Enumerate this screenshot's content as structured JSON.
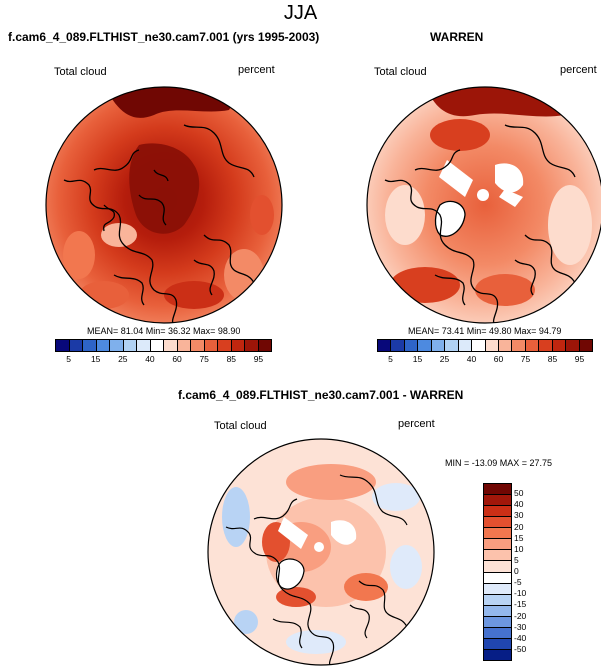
{
  "page": {
    "title": "JJA"
  },
  "panels": [
    {
      "title": "f.cam6_4_089.FLTHIST_ne30.cam7.001 (yrs 1995-2003)",
      "variable_label": "Total cloud",
      "units_label": "percent",
      "stats": {
        "mean": "81.04",
        "min": "36.32",
        "max": "98.90"
      },
      "stats_text": "MEAN= 81.04  Min= 36.32  Max= 98.90"
    },
    {
      "title": "WARREN",
      "variable_label": "Total cloud",
      "units_label": "percent",
      "stats": {
        "mean": "73.41",
        "min": "49.80",
        "max": "94.79"
      },
      "stats_text": "MEAN= 73.41  Min= 49.80  Max= 94.79"
    },
    {
      "title": "f.cam6_4_089.FLTHIST_ne30.cam7.001 - WARREN",
      "variable_label": "Total cloud",
      "units_label": "percent",
      "stats": {
        "min": "-13.09",
        "max": "27.75"
      },
      "stats_text": "MIN = -13.09 MAX =  27.75"
    }
  ],
  "colorbars": {
    "absolute": {
      "labels": [
        "5",
        "15",
        "25",
        "40",
        "60",
        "75",
        "85",
        "95"
      ],
      "colors": [
        "#08087a",
        "#1b3aa6",
        "#2e64c8",
        "#4d8ae0",
        "#7fb0ec",
        "#b1d2f4",
        "#dceafa",
        "#ffffff",
        "#fddccd",
        "#f9b49a",
        "#f38a66",
        "#e8603b",
        "#d83f1f",
        "#c0260f",
        "#9c1508",
        "#700703"
      ]
    },
    "difference": {
      "labels": [
        "50",
        "40",
        "30",
        "20",
        "15",
        "10",
        "5",
        "0",
        "-5",
        "-10",
        "-15",
        "-20",
        "-30",
        "-40",
        "-50"
      ],
      "colors": [
        "#700703",
        "#a1170a",
        "#cb2f16",
        "#e3502f",
        "#f2774f",
        "#f99e80",
        "#fcc2ac",
        "#fde2d6",
        "#ffffff",
        "#dfeafa",
        "#b8d3f4",
        "#94b8ec",
        "#6d97e0",
        "#4672cf",
        "#2046b0",
        "#061e86"
      ]
    }
  }
}
